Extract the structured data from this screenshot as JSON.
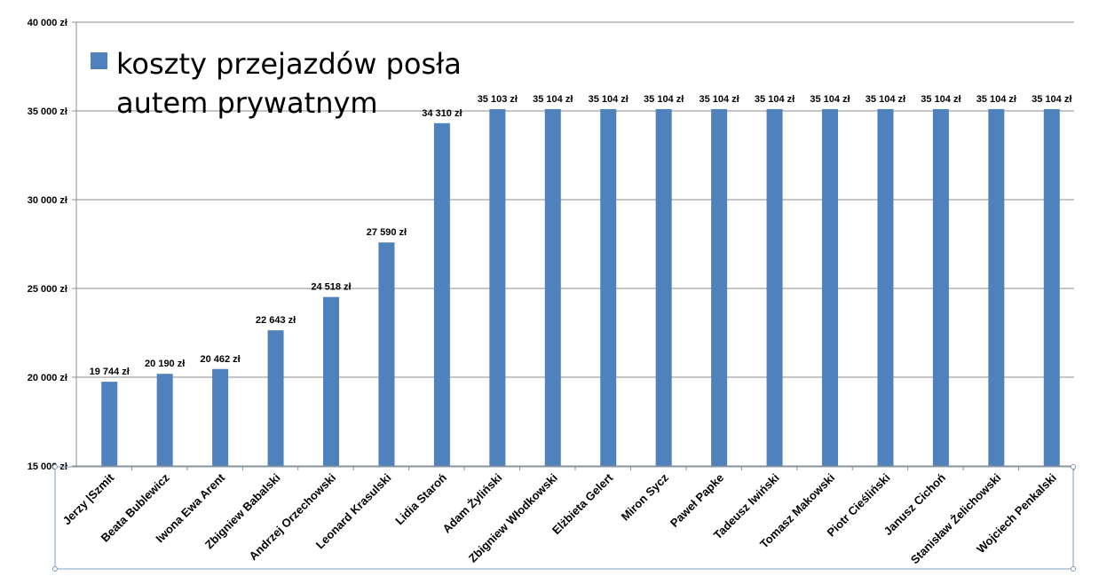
{
  "chart_data": {
    "type": "bar",
    "title": "",
    "xlabel": "",
    "ylabel": "",
    "ylim": [
      15000,
      40000
    ],
    "yticks": [
      15000,
      20000,
      25000,
      30000,
      35000,
      40000
    ],
    "ytick_labels": [
      "15 000 zł",
      "20 000 zł",
      "25 000 zł",
      "30 000 zł",
      "35 000 zł",
      "40 000 zł"
    ],
    "grid": true,
    "legend_position": "top-left",
    "categories": [
      "Jerzy |Szmit",
      "Beata Bublewicz",
      "Iwona Ewa Arent",
      "Zbigniew Babalski",
      "Andrzej Orzechowski",
      "Leonard Krasulski",
      "Lidia Staroń",
      "Adam Żyliński",
      "Zbigniew Włodkowski",
      "Elżbieta Gelert",
      "Miron Sycz",
      "Paweł Papke",
      "Tadeusz Iwiński",
      "Tomasz Makowski",
      "Piotr Cieśliński",
      "Janusz Cichoń",
      "Stanisław Żelichowski",
      "Wojciech Penkalski"
    ],
    "series": [
      {
        "name": "koszty przejazdów posła autem prywatnym",
        "legend_lines": [
          "koszty przejazdów posła",
          "autem prywatnym"
        ],
        "color": "#4f81bd",
        "values": [
          19744,
          20190,
          20462,
          22643,
          24518,
          27590,
          34310,
          35103,
          35104,
          35104,
          35104,
          35104,
          35104,
          35104,
          35104,
          35104,
          35104,
          35104
        ],
        "data_labels": [
          "19 744 zł",
          "20 190 zł",
          "20 462 zł",
          "22 643 zł",
          "24 518 zł",
          "27 590 zł",
          "34 310 zł",
          "35 103 zł",
          "35 104 zł",
          "35 104 zł",
          "35 104 zł",
          "35 104 zł",
          "35 104 zł",
          "35 104 zł",
          "35 104 zł",
          "35 104 zł",
          "35 104 zł",
          "35 104 zł"
        ]
      }
    ]
  }
}
